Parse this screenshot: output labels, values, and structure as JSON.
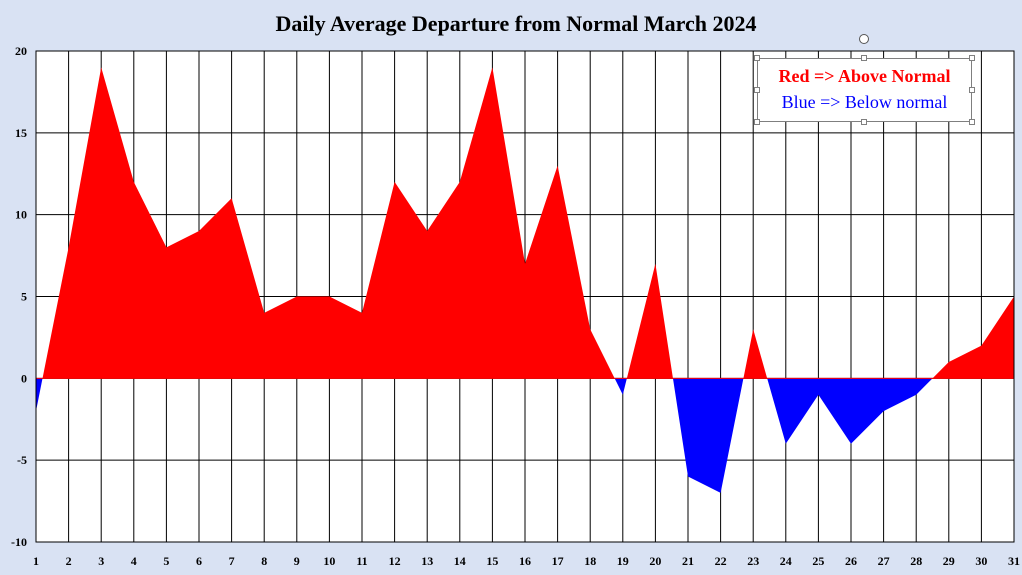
{
  "chart_data": {
    "type": "area",
    "title": "Daily Average Departure from Normal March 2024",
    "x": [
      1,
      2,
      3,
      4,
      5,
      6,
      7,
      8,
      9,
      10,
      11,
      12,
      13,
      14,
      15,
      16,
      17,
      18,
      19,
      20,
      21,
      22,
      23,
      24,
      25,
      26,
      27,
      28,
      29,
      30,
      31
    ],
    "values": [
      -2,
      8,
      19,
      12,
      8,
      9,
      11,
      4,
      5,
      5,
      4,
      12,
      9,
      12,
      19,
      7,
      13,
      3,
      -1,
      7,
      -6,
      -7,
      3,
      -4,
      -1,
      -4,
      -2,
      -1,
      1,
      2,
      5
    ],
    "ylim": [
      -10,
      20
    ],
    "yticks": [
      20,
      15,
      10,
      5,
      0,
      -5,
      -10
    ],
    "xticks": [
      "1",
      "2",
      "3",
      "4",
      "5",
      "6",
      "7",
      "8",
      "9",
      "10",
      "11",
      "12",
      "13",
      "14",
      "15",
      "16",
      "17",
      "18",
      "19",
      "20",
      "21",
      "22",
      "23",
      "24",
      "25",
      "26",
      "27",
      "28",
      "29",
      "30",
      "31"
    ],
    "grid": true,
    "legend_position": "top-right",
    "colors": {
      "above": "#ff0000",
      "below": "#0000ff",
      "background": "#d9e2f3"
    }
  },
  "legend": {
    "above_label": "Red => Above Normal",
    "below_label": "Blue => Below normal"
  }
}
